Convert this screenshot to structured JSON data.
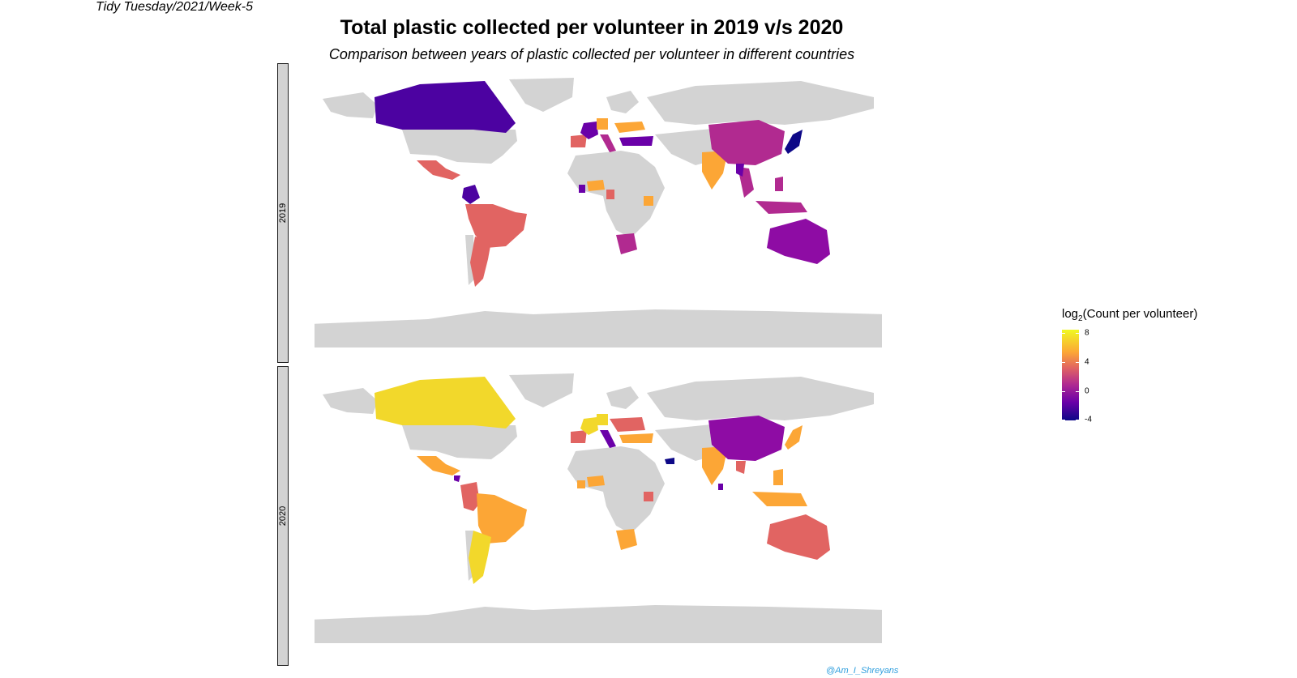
{
  "tag": "Tidy Tuesday/2021/Week-5",
  "title": "Total plastic collected per volunteer in 2019 v/s 2020",
  "subtitle": "Comparison between years of plastic collected per volunteer in different countries",
  "facets": [
    "2019",
    "2020"
  ],
  "legend": {
    "title_prefix": "log",
    "title_sub": "2",
    "title_rest": "(Count per volunteer)",
    "ticks": [
      "8",
      "4",
      "0",
      "-4"
    ],
    "palette": [
      "#f0f921",
      "#fca636",
      "#e16462",
      "#b12a90",
      "#6a00a8",
      "#0d0887"
    ]
  },
  "credit": "@Am_I_Shreyans",
  "colors": {
    "land": "#d3d3d3",
    "strip": "#d3d3d3"
  }
}
